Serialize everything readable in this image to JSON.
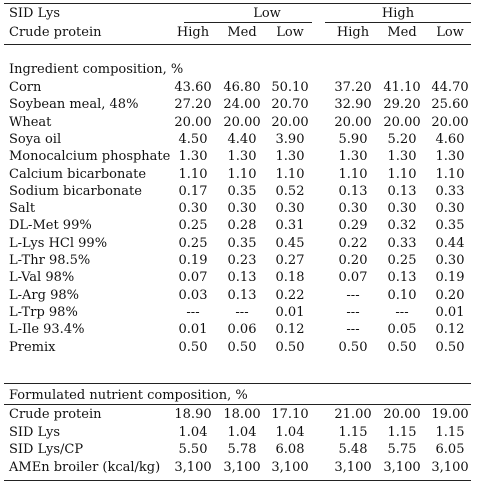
{
  "header": {
    "row1_label": "SID Lys",
    "row2_label": "Crude protein",
    "groups": [
      "Low",
      "High"
    ],
    "columns": [
      "High",
      "Med",
      "Low",
      "High",
      "Med",
      "Low"
    ]
  },
  "sections": [
    {
      "title": "Ingredient composition, %",
      "rows": [
        {
          "label": "Corn",
          "values": [
            "43.60",
            "46.80",
            "50.10",
            "37.20",
            "41.10",
            "44.70"
          ]
        },
        {
          "label": "Soybean meal, 48%",
          "values": [
            "27.20",
            "24.00",
            "20.70",
            "32.90",
            "29.20",
            "25.60"
          ]
        },
        {
          "label": "Wheat",
          "values": [
            "20.00",
            "20.00",
            "20.00",
            "20.00",
            "20.00",
            "20.00"
          ]
        },
        {
          "label": "Soya oil",
          "values": [
            "4.50",
            "4.40",
            "3.90",
            "5.90",
            "5.20",
            "4.60"
          ]
        },
        {
          "label": "Monocalcium phosphate",
          "values": [
            "1.30",
            "1.30",
            "1.30",
            "1.30",
            "1.30",
            "1.30"
          ]
        },
        {
          "label": "Calcium bicarbonate",
          "values": [
            "1.10",
            "1.10",
            "1.10",
            "1.10",
            "1.10",
            "1.10"
          ]
        },
        {
          "label": "Sodium bicarbonate",
          "values": [
            "0.17",
            "0.35",
            "0.52",
            "0.13",
            "0.13",
            "0.33"
          ]
        },
        {
          "label": "Salt",
          "values": [
            "0.30",
            "0.30",
            "0.30",
            "0.30",
            "0.30",
            "0.30"
          ]
        },
        {
          "label": "DL-Met 99%",
          "values": [
            "0.25",
            "0.28",
            "0.31",
            "0.29",
            "0.32",
            "0.35"
          ]
        },
        {
          "label": "L-Lys HCl 99%",
          "values": [
            "0.25",
            "0.35",
            "0.45",
            "0.22",
            "0.33",
            "0.44"
          ]
        },
        {
          "label": "L-Thr 98.5%",
          "values": [
            "0.19",
            "0.23",
            "0.27",
            "0.20",
            "0.25",
            "0.30"
          ]
        },
        {
          "label": "L-Val 98%",
          "values": [
            "0.07",
            "0.13",
            "0.18",
            "0.07",
            "0.13",
            "0.19"
          ]
        },
        {
          "label": "L-Arg 98%",
          "values": [
            "0.03",
            "0.13",
            "0.22",
            "---",
            "0.10",
            "0.20"
          ]
        },
        {
          "label": "L-Trp 98%",
          "values": [
            "---",
            "---",
            "0.01",
            "---",
            "---",
            "0.01"
          ]
        },
        {
          "label": "L-Ile 93.4%",
          "values": [
            "0.01",
            "0.06",
            "0.12",
            "---",
            "0.05",
            "0.12"
          ]
        },
        {
          "label": "Premix",
          "values": [
            "0.50",
            "0.50",
            "0.50",
            "0.50",
            "0.50",
            "0.50"
          ]
        }
      ]
    },
    {
      "title": "Formulated nutrient composition, %",
      "rows": [
        {
          "label": "Crude protein",
          "values": [
            "18.90",
            "18.00",
            "17.10",
            "21.00",
            "20.00",
            "19.00"
          ]
        },
        {
          "label": "SID Lys",
          "values": [
            "1.04",
            "1.04",
            "1.04",
            "1.15",
            "1.15",
            "1.15"
          ]
        },
        {
          "label": "SID Lys/CP",
          "values": [
            "5.50",
            "5.78",
            "6.08",
            "5.48",
            "5.75",
            "6.05"
          ]
        },
        {
          "label": "AMEn broiler (kcal/kg)",
          "values": [
            "3,100",
            "3,100",
            "3,100",
            "3,100",
            "3,100",
            "3,100"
          ]
        }
      ]
    }
  ]
}
